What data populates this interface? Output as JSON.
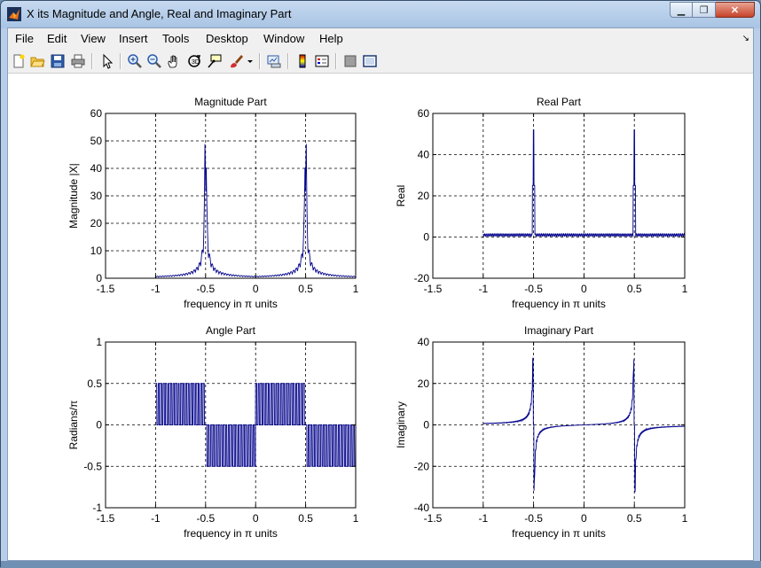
{
  "window": {
    "title": "X its Magnitude and Angle, Real and Imaginary Part"
  },
  "menu": [
    "File",
    "Edit",
    "View",
    "Insert",
    "Tools",
    "Desktop",
    "Window",
    "Help"
  ],
  "toolbar": {
    "icons": [
      "new-figure-icon",
      "open-file-icon",
      "save-icon",
      "print-icon",
      "pointer-icon",
      "zoom-in-icon",
      "zoom-out-icon",
      "pan-hand-icon",
      "rotate-3d-icon",
      "data-cursor-icon",
      "brush-icon",
      "brush-dropdown-icon",
      "link-plot-icon",
      "insert-colorbar-icon",
      "insert-legend-icon",
      "hide-plot-tools-icon",
      "show-plot-tools-icon"
    ]
  },
  "chart_data": [
    {
      "type": "line",
      "title": "Magnitude Part",
      "xlabel": "frequency in π units",
      "ylabel": "Magnitude  |X|",
      "xlim": [
        -1.5,
        1
      ],
      "ylim": [
        0,
        60
      ],
      "xticks": [
        "-1.5",
        "-1",
        "-0.5",
        "0",
        "0.5",
        "1"
      ],
      "yticks": [
        "0",
        "10",
        "20",
        "30",
        "40",
        "50",
        "60"
      ],
      "grid": true,
      "description_points": {
        "x": [
          -1,
          -0.7,
          -0.55,
          -0.5,
          -0.45,
          -0.3,
          0,
          0.3,
          0.45,
          0.5,
          0.55,
          0.7,
          1
        ],
        "y": [
          1,
          2,
          5,
          51,
          5,
          2,
          0.5,
          2,
          5,
          51,
          5,
          2,
          1
        ]
      }
    },
    {
      "type": "line",
      "title": "Real Part",
      "xlabel": "frequency in π units",
      "ylabel": "Real",
      "xlim": [
        -1.5,
        1
      ],
      "ylim": [
        -20,
        60
      ],
      "xticks": [
        "-1.5",
        "-1",
        "-0.5",
        "0",
        "0.5",
        "1"
      ],
      "yticks": [
        "-20",
        "0",
        "20",
        "40",
        "60"
      ],
      "grid": true,
      "description_points": {
        "x": [
          -1,
          -0.5,
          0,
          0.5,
          1
        ],
        "y": [
          1,
          52,
          1,
          52,
          1
        ]
      }
    },
    {
      "type": "line",
      "title": "Angle Part",
      "xlabel": "frequency in π units",
      "ylabel": "Radians/π",
      "xlim": [
        -1.5,
        1
      ],
      "ylim": [
        -1,
        1
      ],
      "xticks": [
        "-1.5",
        "-1",
        "-0.5",
        "0",
        "0.5",
        "1"
      ],
      "yticks": [
        "-1",
        "-0.5",
        "0",
        "0.5",
        "1"
      ],
      "grid": true,
      "segments": [
        {
          "x_range": [
            -1,
            -0.5
          ],
          "oscillates_between": [
            0,
            0.5
          ]
        },
        {
          "x_range": [
            -0.5,
            0
          ],
          "oscillates_between": [
            -0.5,
            0
          ]
        },
        {
          "x_range": [
            0,
            0.5
          ],
          "oscillates_between": [
            0,
            0.5
          ]
        },
        {
          "x_range": [
            0.5,
            1
          ],
          "oscillates_between": [
            -0.5,
            0
          ]
        }
      ]
    },
    {
      "type": "line",
      "title": "Imaginary Part",
      "xlabel": "frequency in π units",
      "ylabel": "Imaginary",
      "xlim": [
        -1.5,
        1
      ],
      "ylim": [
        -40,
        40
      ],
      "xticks": [
        "-1.5",
        "-1",
        "-0.5",
        "0",
        "0.5",
        "1"
      ],
      "yticks": [
        "-40",
        "-20",
        "0",
        "20",
        "40"
      ],
      "grid": true,
      "description_points": {
        "x": [
          -1,
          -0.6,
          -0.51,
          -0.49,
          -0.4,
          0,
          0.4,
          0.49,
          0.51,
          0.6,
          1
        ],
        "y": [
          0,
          3,
          33,
          -33,
          -3,
          0,
          3,
          33,
          -33,
          -3,
          0
        ]
      }
    }
  ],
  "colors": {
    "line": "#00008b",
    "grid": "#000000",
    "axes": "#000000"
  }
}
